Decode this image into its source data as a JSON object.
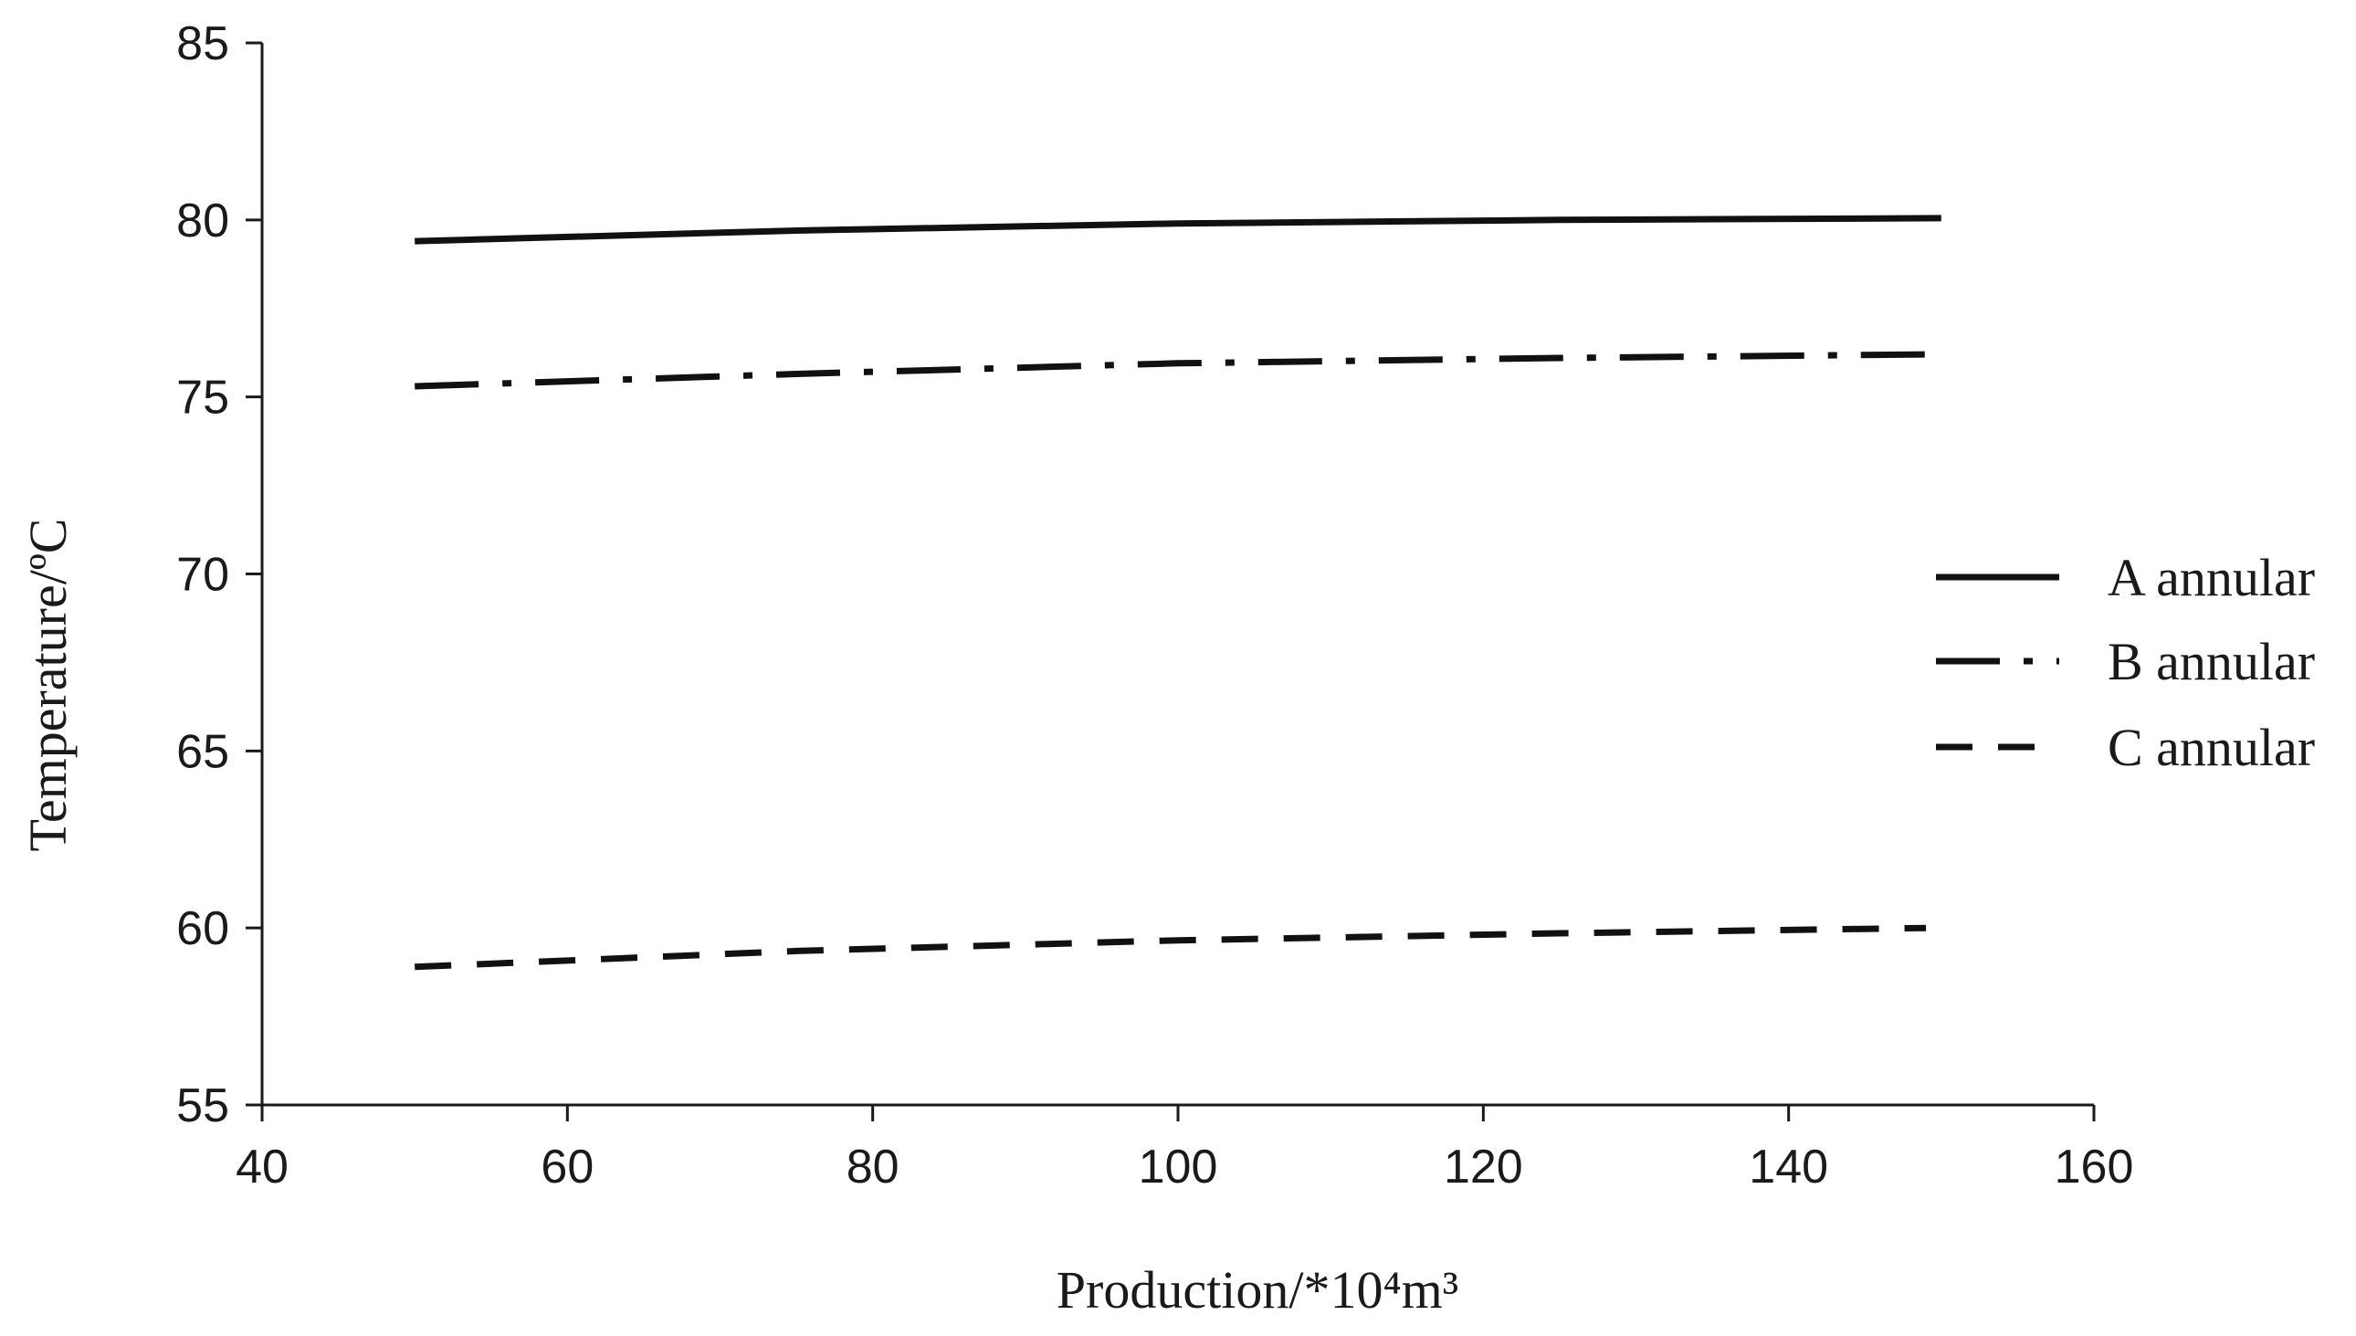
{
  "chart_data": {
    "type": "line",
    "title": "",
    "xlabel": "Production/*10⁴m³",
    "ylabel": "Temperature/ºC",
    "xlim": [
      40,
      160
    ],
    "ylim": [
      55,
      85
    ],
    "x_ticks": [
      40,
      60,
      80,
      100,
      120,
      140,
      160
    ],
    "y_ticks": [
      55,
      60,
      65,
      70,
      75,
      80,
      85
    ],
    "grid": false,
    "legend_position": "right",
    "series": [
      {
        "name": "A annular",
        "style": "solid",
        "color": "#111111",
        "x": [
          50,
          75,
          100,
          125,
          150
        ],
        "y": [
          79.4,
          79.7,
          79.9,
          80.0,
          80.05
        ]
      },
      {
        "name": "B annular",
        "style": "dash-dot",
        "color": "#111111",
        "x": [
          50,
          75,
          100,
          125,
          149
        ],
        "y": [
          75.3,
          75.65,
          75.95,
          76.1,
          76.2
        ]
      },
      {
        "name": "C annular",
        "style": "dashed",
        "color": "#111111",
        "x": [
          50,
          75,
          100,
          125,
          149
        ],
        "y": [
          58.9,
          59.35,
          59.65,
          59.85,
          60.0
        ]
      }
    ]
  }
}
